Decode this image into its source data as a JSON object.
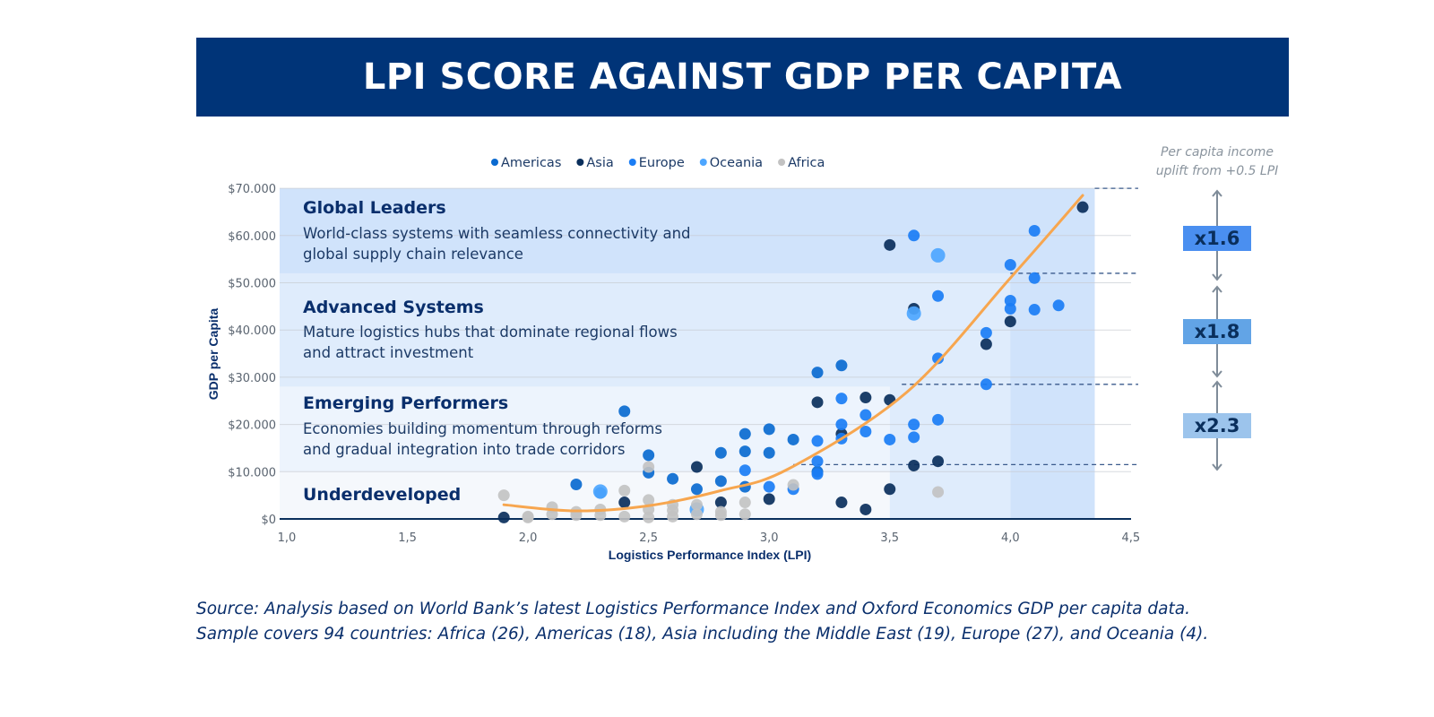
{
  "header": {
    "title": "LPI SCORE AGAINST GDP PER CAPITA"
  },
  "source": {
    "line1": "Source: Analysis based on World Bank’s latest Logistics Performance Index and Oxford Economics GDP per capita data.",
    "line2": "Sample covers 94 countries: Africa (26), Americas (18), Asia including the Middle East (19), Europe (27), and Oceania (4)."
  },
  "uplift": {
    "note_line1": "Per capita income",
    "note_line2": "uplift from +0.5 LPI",
    "multipliers": [
      {
        "label": "x1.6",
        "color": "#4a8ff0"
      },
      {
        "label": "x1.8",
        "color": "#62a4e6"
      },
      {
        "label": "x2.3",
        "color": "#9cc4ec"
      }
    ]
  },
  "chart_data": {
    "type": "scatter",
    "title": "LPI SCORE AGAINST GDP PER CAPITA",
    "xlabel": "Logistics Performance Index (LPI)",
    "ylabel": "GDP per Capita",
    "xlim": [
      1.0,
      4.5
    ],
    "ylim": [
      0,
      70000
    ],
    "x_ticks": [
      "1,0",
      "1,5",
      "2,0",
      "2,5",
      "3,0",
      "3,5",
      "4,0",
      "4,5"
    ],
    "x_tick_values": [
      1.0,
      1.5,
      2.0,
      2.5,
      3.0,
      3.5,
      4.0,
      4.5
    ],
    "y_ticks": [
      "$0",
      "$10.000",
      "$20.000",
      "$30.000",
      "$40.000",
      "$50.000",
      "$60.000",
      "$70.000"
    ],
    "y_tick_values": [
      0,
      10000,
      20000,
      30000,
      40000,
      50000,
      60000,
      70000
    ],
    "grid": "horizontal",
    "legend_placement": "top",
    "bands": [
      {
        "title": "Global Leaders",
        "desc1": "World-class systems with seamless connectivity and",
        "desc2": "global supply chain relevance",
        "y_range": [
          52000,
          70000
        ],
        "color": "#d0e3fb"
      },
      {
        "title": "Advanced Systems",
        "desc1": "Mature logistics hubs that dominate regional flows",
        "desc2": "and attract investment",
        "y_range": [
          28000,
          52000
        ],
        "color": "#dfecfc"
      },
      {
        "title": "Emerging Performers",
        "desc1": "Economies building momentum through reforms",
        "desc2": "and gradual integration into trade corridors",
        "y_range": [
          10000,
          28000
        ],
        "color": "#edf4fd"
      },
      {
        "title": "Underdeveloped",
        "desc1": "",
        "desc2": "",
        "y_range": [
          0,
          10000
        ],
        "color": "#f5f8fc"
      }
    ],
    "thresholds": [
      {
        "lpi": 3.1,
        "gdp": 11500
      },
      {
        "lpi": 3.55,
        "gdp": 28500
      },
      {
        "lpi": 4.0,
        "gdp": 52000
      },
      {
        "lpi": 4.35,
        "gdp": 70000
      }
    ],
    "trendline": {
      "color": "#f7a64f",
      "points": [
        [
          1.9,
          3000
        ],
        [
          2.2,
          1700
        ],
        [
          2.5,
          2800
        ],
        [
          2.8,
          6000
        ],
        [
          3.08,
          10600
        ],
        [
          3.57,
          26800
        ],
        [
          4.0,
          51000
        ],
        [
          4.3,
          68500
        ]
      ]
    },
    "series": [
      {
        "name": "Americas",
        "color": "#0a6ad0",
        "points": [
          [
            2.4,
            22800
          ],
          [
            2.5,
            13500
          ],
          [
            2.8,
            14000
          ],
          [
            2.9,
            18000
          ],
          [
            2.9,
            14300
          ],
          [
            3.0,
            19000
          ],
          [
            3.0,
            14000
          ],
          [
            3.1,
            16800
          ],
          [
            3.2,
            31000
          ],
          [
            3.3,
            32500
          ],
          [
            2.2,
            7300
          ],
          [
            2.6,
            8500
          ],
          [
            2.5,
            9800
          ],
          [
            2.7,
            6300
          ],
          [
            2.9,
            6800
          ],
          [
            3.2,
            10000
          ],
          [
            2.8,
            8000
          ],
          [
            2.3,
            5500
          ]
        ]
      },
      {
        "name": "Asia",
        "color": "#0a2f5c",
        "points": [
          [
            1.9,
            300
          ],
          [
            2.7,
            11000
          ],
          [
            3.0,
            4200
          ],
          [
            3.2,
            24700
          ],
          [
            3.3,
            3500
          ],
          [
            3.3,
            18000
          ],
          [
            3.4,
            25700
          ],
          [
            3.4,
            2000
          ],
          [
            3.5,
            58000
          ],
          [
            3.5,
            25200
          ],
          [
            3.5,
            6300
          ],
          [
            3.6,
            44500
          ],
          [
            3.6,
            11300
          ],
          [
            3.7,
            12200
          ],
          [
            3.9,
            37000
          ],
          [
            4.0,
            41800
          ],
          [
            4.3,
            66000
          ],
          [
            2.4,
            3500
          ],
          [
            2.8,
            3500
          ]
        ]
      },
      {
        "name": "Europe",
        "color": "#1a7df5",
        "points": [
          [
            3.6,
            60000
          ],
          [
            3.7,
            47200
          ],
          [
            3.7,
            34000
          ],
          [
            3.6,
            20000
          ],
          [
            3.6,
            17300
          ],
          [
            3.7,
            21000
          ],
          [
            3.5,
            16800
          ],
          [
            3.4,
            22000
          ],
          [
            3.4,
            18500
          ],
          [
            3.3,
            25500
          ],
          [
            3.3,
            20000
          ],
          [
            3.3,
            17000
          ],
          [
            3.2,
            16500
          ],
          [
            3.2,
            12200
          ],
          [
            3.9,
            39400
          ],
          [
            3.9,
            28500
          ],
          [
            4.0,
            53800
          ],
          [
            4.0,
            46200
          ],
          [
            4.0,
            44500
          ],
          [
            4.1,
            61000
          ],
          [
            4.1,
            51000
          ],
          [
            4.1,
            44300
          ],
          [
            4.2,
            45200
          ],
          [
            3.1,
            6300
          ],
          [
            3.0,
            6800
          ],
          [
            2.9,
            10300
          ],
          [
            3.2,
            9500
          ]
        ]
      },
      {
        "name": "Oceania",
        "color": "#4da6ff",
        "points": [
          [
            3.7,
            55800
          ],
          [
            3.6,
            43500
          ],
          [
            2.3,
            5800
          ],
          [
            2.7,
            2000
          ]
        ]
      },
      {
        "name": "Africa",
        "color": "#c2c2c2",
        "points": [
          [
            1.9,
            5000
          ],
          [
            2.0,
            500
          ],
          [
            2.1,
            2500
          ],
          [
            2.1,
            1000
          ],
          [
            2.2,
            1500
          ],
          [
            2.3,
            800
          ],
          [
            2.3,
            2000
          ],
          [
            2.4,
            6000
          ],
          [
            2.4,
            500
          ],
          [
            2.5,
            11000
          ],
          [
            2.5,
            4000
          ],
          [
            2.5,
            2000
          ],
          [
            2.5,
            300
          ],
          [
            2.6,
            1800
          ],
          [
            2.6,
            500
          ],
          [
            2.7,
            3000
          ],
          [
            2.7,
            1000
          ],
          [
            2.8,
            800
          ],
          [
            2.8,
            1500
          ],
          [
            2.9,
            3500
          ],
          [
            2.9,
            1000
          ],
          [
            3.1,
            7200
          ],
          [
            3.7,
            5700
          ],
          [
            2.6,
            3000
          ],
          [
            2.2,
            800
          ],
          [
            2.0,
            300
          ]
        ]
      }
    ]
  }
}
